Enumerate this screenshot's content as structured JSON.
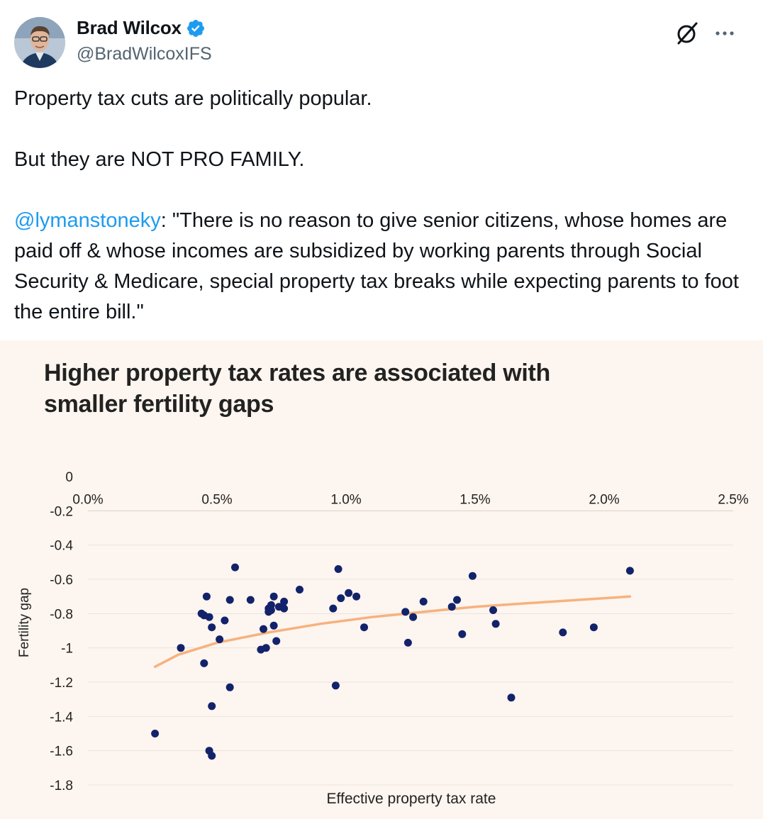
{
  "author": {
    "display_name": "Brad Wilcox",
    "handle": "@BradWilcoxIFS",
    "avatar_icon": "avatar",
    "verified_icon": "verified-badge-icon"
  },
  "header_icons": [
    "grok-icon",
    "more-icon"
  ],
  "tweet": {
    "line1": "Property tax cuts are politically popular.",
    "line2": "But they are NOT PRO FAMILY.",
    "mention": "@lymanstoneky",
    "quote": ": \"There is no reason to give senior citizens, whose homes are paid off & whose incomes are subsidized by working parents through Social Security & Medicare, special property tax breaks while expecting parents to foot the entire bill.\""
  },
  "colors": {
    "accent": "#1d9bf0",
    "chart_bg": "#fdf5ef",
    "point": "#12236b",
    "trend": "#f6b27f"
  },
  "chart_data": {
    "type": "scatter",
    "title": "Higher property tax rates are associated with smaller fertility gaps",
    "xlabel": "Effective property tax rate",
    "ylabel": "Fertility gap",
    "xlim": [
      0,
      2.5
    ],
    "ylim": [
      -1.8,
      0
    ],
    "x_tick_labels": [
      "0.0%",
      "0.5%",
      "1.0%",
      "1.5%",
      "2.0%",
      "2.5%"
    ],
    "y_tick_labels": [
      "0",
      "-0.2",
      "-0.4",
      "-0.6",
      "-0.8",
      "-1",
      "-1.2",
      "-1.4",
      "-1.6",
      "-1.8"
    ],
    "x_axis_position": "top, at y = -0.2",
    "grid": "horizontal",
    "series": [
      {
        "kind": "points",
        "x": [
          0.26,
          0.36,
          0.44,
          0.45,
          0.45,
          0.46,
          0.47,
          0.47,
          0.48,
          0.48,
          0.48,
          0.51,
          0.53,
          0.55,
          0.55,
          0.57,
          0.63,
          0.67,
          0.68,
          0.69,
          0.7,
          0.7,
          0.71,
          0.71,
          0.72,
          0.72,
          0.73,
          0.74,
          0.76,
          0.76,
          0.82,
          0.95,
          0.96,
          0.97,
          0.98,
          1.01,
          1.04,
          1.07,
          1.23,
          1.24,
          1.26,
          1.3,
          1.41,
          1.43,
          1.45,
          1.49,
          1.57,
          1.58,
          1.64,
          1.84,
          1.96,
          2.1
        ],
        "y": [
          -1.5,
          -1.0,
          -0.8,
          -0.81,
          -1.09,
          -0.7,
          -0.82,
          -1.6,
          -0.88,
          -1.34,
          -1.63,
          -0.95,
          -0.84,
          -0.72,
          -1.23,
          -0.53,
          -0.72,
          -1.01,
          -0.89,
          -1.0,
          -0.77,
          -0.79,
          -0.75,
          -0.78,
          -0.7,
          -0.87,
          -0.96,
          -0.76,
          -0.73,
          -0.77,
          -0.66,
          -0.77,
          -1.22,
          -0.54,
          -0.71,
          -0.68,
          -0.7,
          -0.88,
          -0.79,
          -0.97,
          -0.82,
          -0.73,
          -0.76,
          -0.72,
          -0.92,
          -0.58,
          -0.78,
          -0.86,
          -1.29,
          -0.91,
          -0.88,
          -0.55
        ]
      },
      {
        "kind": "trendline",
        "x": [
          0.26,
          0.35,
          0.5,
          0.7,
          0.9,
          1.1,
          1.3,
          1.5,
          1.7,
          1.9,
          2.1
        ],
        "y": [
          -1.11,
          -1.04,
          -0.97,
          -0.91,
          -0.86,
          -0.82,
          -0.79,
          -0.76,
          -0.74,
          -0.72,
          -0.7
        ]
      }
    ]
  }
}
